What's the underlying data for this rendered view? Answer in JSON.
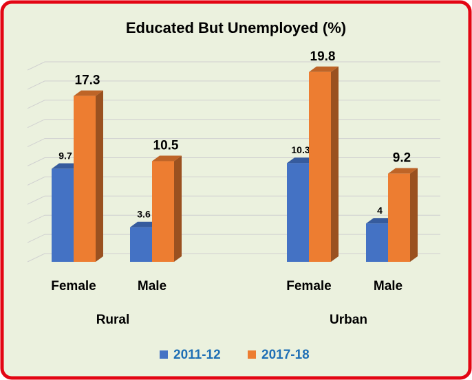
{
  "chart_data": {
    "type": "bar3d",
    "title": "Educated But Unemployed (%)",
    "categories": [
      "Female",
      "Male",
      "Female",
      "Male"
    ],
    "groups": [
      {
        "label": "Rural",
        "size": 2
      },
      {
        "label": "Urban",
        "size": 2
      }
    ],
    "series": [
      {
        "name": "2011-12",
        "color": "#4472c4",
        "values": [
          9.7,
          3.6,
          10.3,
          4
        ]
      },
      {
        "name": "2017-18",
        "color": "#ed7d31",
        "values": [
          17.3,
          10.5,
          19.8,
          9.2
        ]
      }
    ],
    "ylim": [
      0,
      20
    ],
    "yticks": [
      0,
      2,
      4,
      6,
      8,
      10,
      12,
      14,
      16,
      18,
      20
    ],
    "grid": true,
    "legend": "bottom"
  }
}
